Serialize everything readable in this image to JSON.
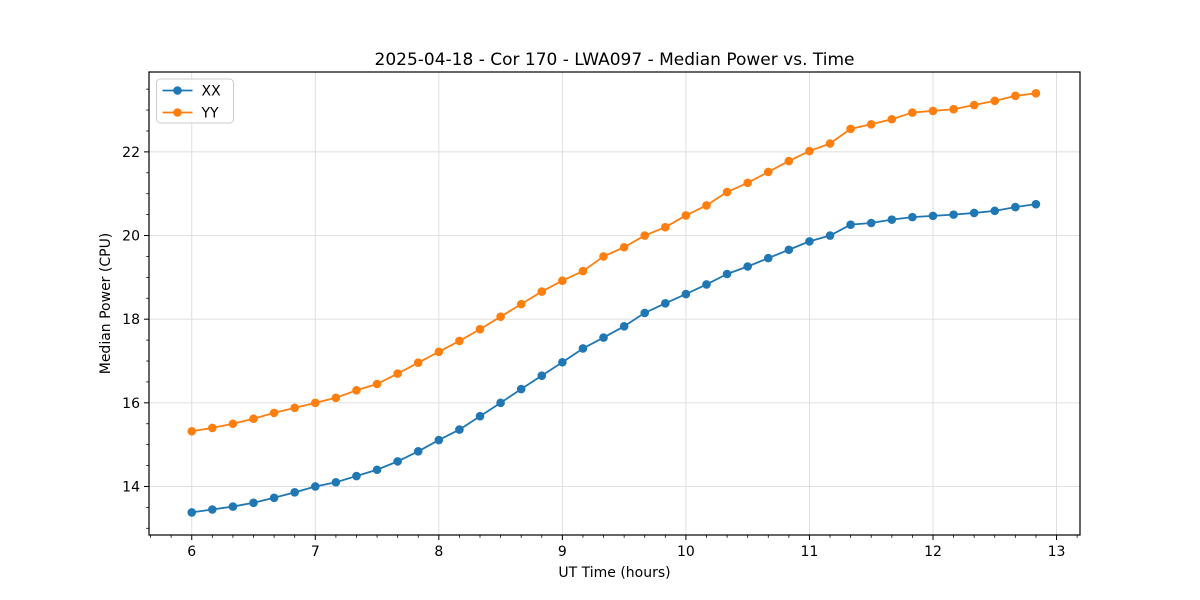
{
  "chart_data": {
    "type": "line",
    "title": "2025-04-18 - Cor 170 - LWA097 - Median Power vs. Time",
    "xlabel": "UT Time (hours)",
    "ylabel": "Median Power (CPU)",
    "xlim": [
      5.654,
      13.19
    ],
    "ylim": [
      12.84,
      23.91
    ],
    "x_major_ticks": [
      6,
      7,
      8,
      9,
      10,
      11,
      12,
      13
    ],
    "y_major_ticks": [
      14,
      16,
      18,
      20,
      22
    ],
    "x_minor_step": 0.166667,
    "y_minor_step": 0.5,
    "grid": "major-both",
    "grid_color": "#dcdcdc",
    "spine_color": "#000000",
    "legend_position": "upper-left",
    "x": [
      6.0,
      6.1667,
      6.3333,
      6.5,
      6.6667,
      6.8333,
      7.0,
      7.1667,
      7.3333,
      7.5,
      7.6667,
      7.8333,
      8.0,
      8.1667,
      8.3333,
      8.5,
      8.6667,
      8.8333,
      9.0,
      9.1667,
      9.3333,
      9.5,
      9.6667,
      9.8333,
      10.0,
      10.1667,
      10.3333,
      10.5,
      10.6667,
      10.8333,
      11.0,
      11.1667,
      11.3333,
      11.5,
      11.6667,
      11.8333,
      12.0,
      12.1667,
      12.3333,
      12.5,
      12.6667,
      12.8333
    ],
    "series": [
      {
        "name": "XX",
        "color": "#1f77b4",
        "values": [
          13.38,
          13.45,
          13.52,
          13.61,
          13.73,
          13.86,
          14.0,
          14.1,
          14.25,
          14.4,
          14.6,
          14.84,
          15.11,
          15.36,
          15.68,
          16.0,
          16.33,
          16.65,
          16.97,
          17.3,
          17.56,
          17.83,
          18.15,
          18.38,
          18.6,
          18.83,
          19.08,
          19.26,
          19.46,
          19.66,
          19.86,
          20.0,
          20.26,
          20.3,
          20.38,
          20.44,
          20.47,
          20.5,
          20.54,
          20.59,
          20.68,
          20.75
        ]
      },
      {
        "name": "YY",
        "color": "#ff7f0e",
        "values": [
          15.32,
          15.4,
          15.5,
          15.62,
          15.76,
          15.88,
          16.0,
          16.12,
          16.3,
          16.45,
          16.7,
          16.96,
          17.22,
          17.48,
          17.76,
          18.06,
          18.36,
          18.66,
          18.92,
          19.15,
          19.5,
          19.72,
          20.0,
          20.2,
          20.48,
          20.72,
          21.04,
          21.26,
          21.52,
          21.78,
          22.02,
          22.2,
          22.55,
          22.66,
          22.78,
          22.94,
          22.98,
          23.02,
          23.12,
          23.22,
          23.34,
          23.4
        ]
      }
    ]
  }
}
